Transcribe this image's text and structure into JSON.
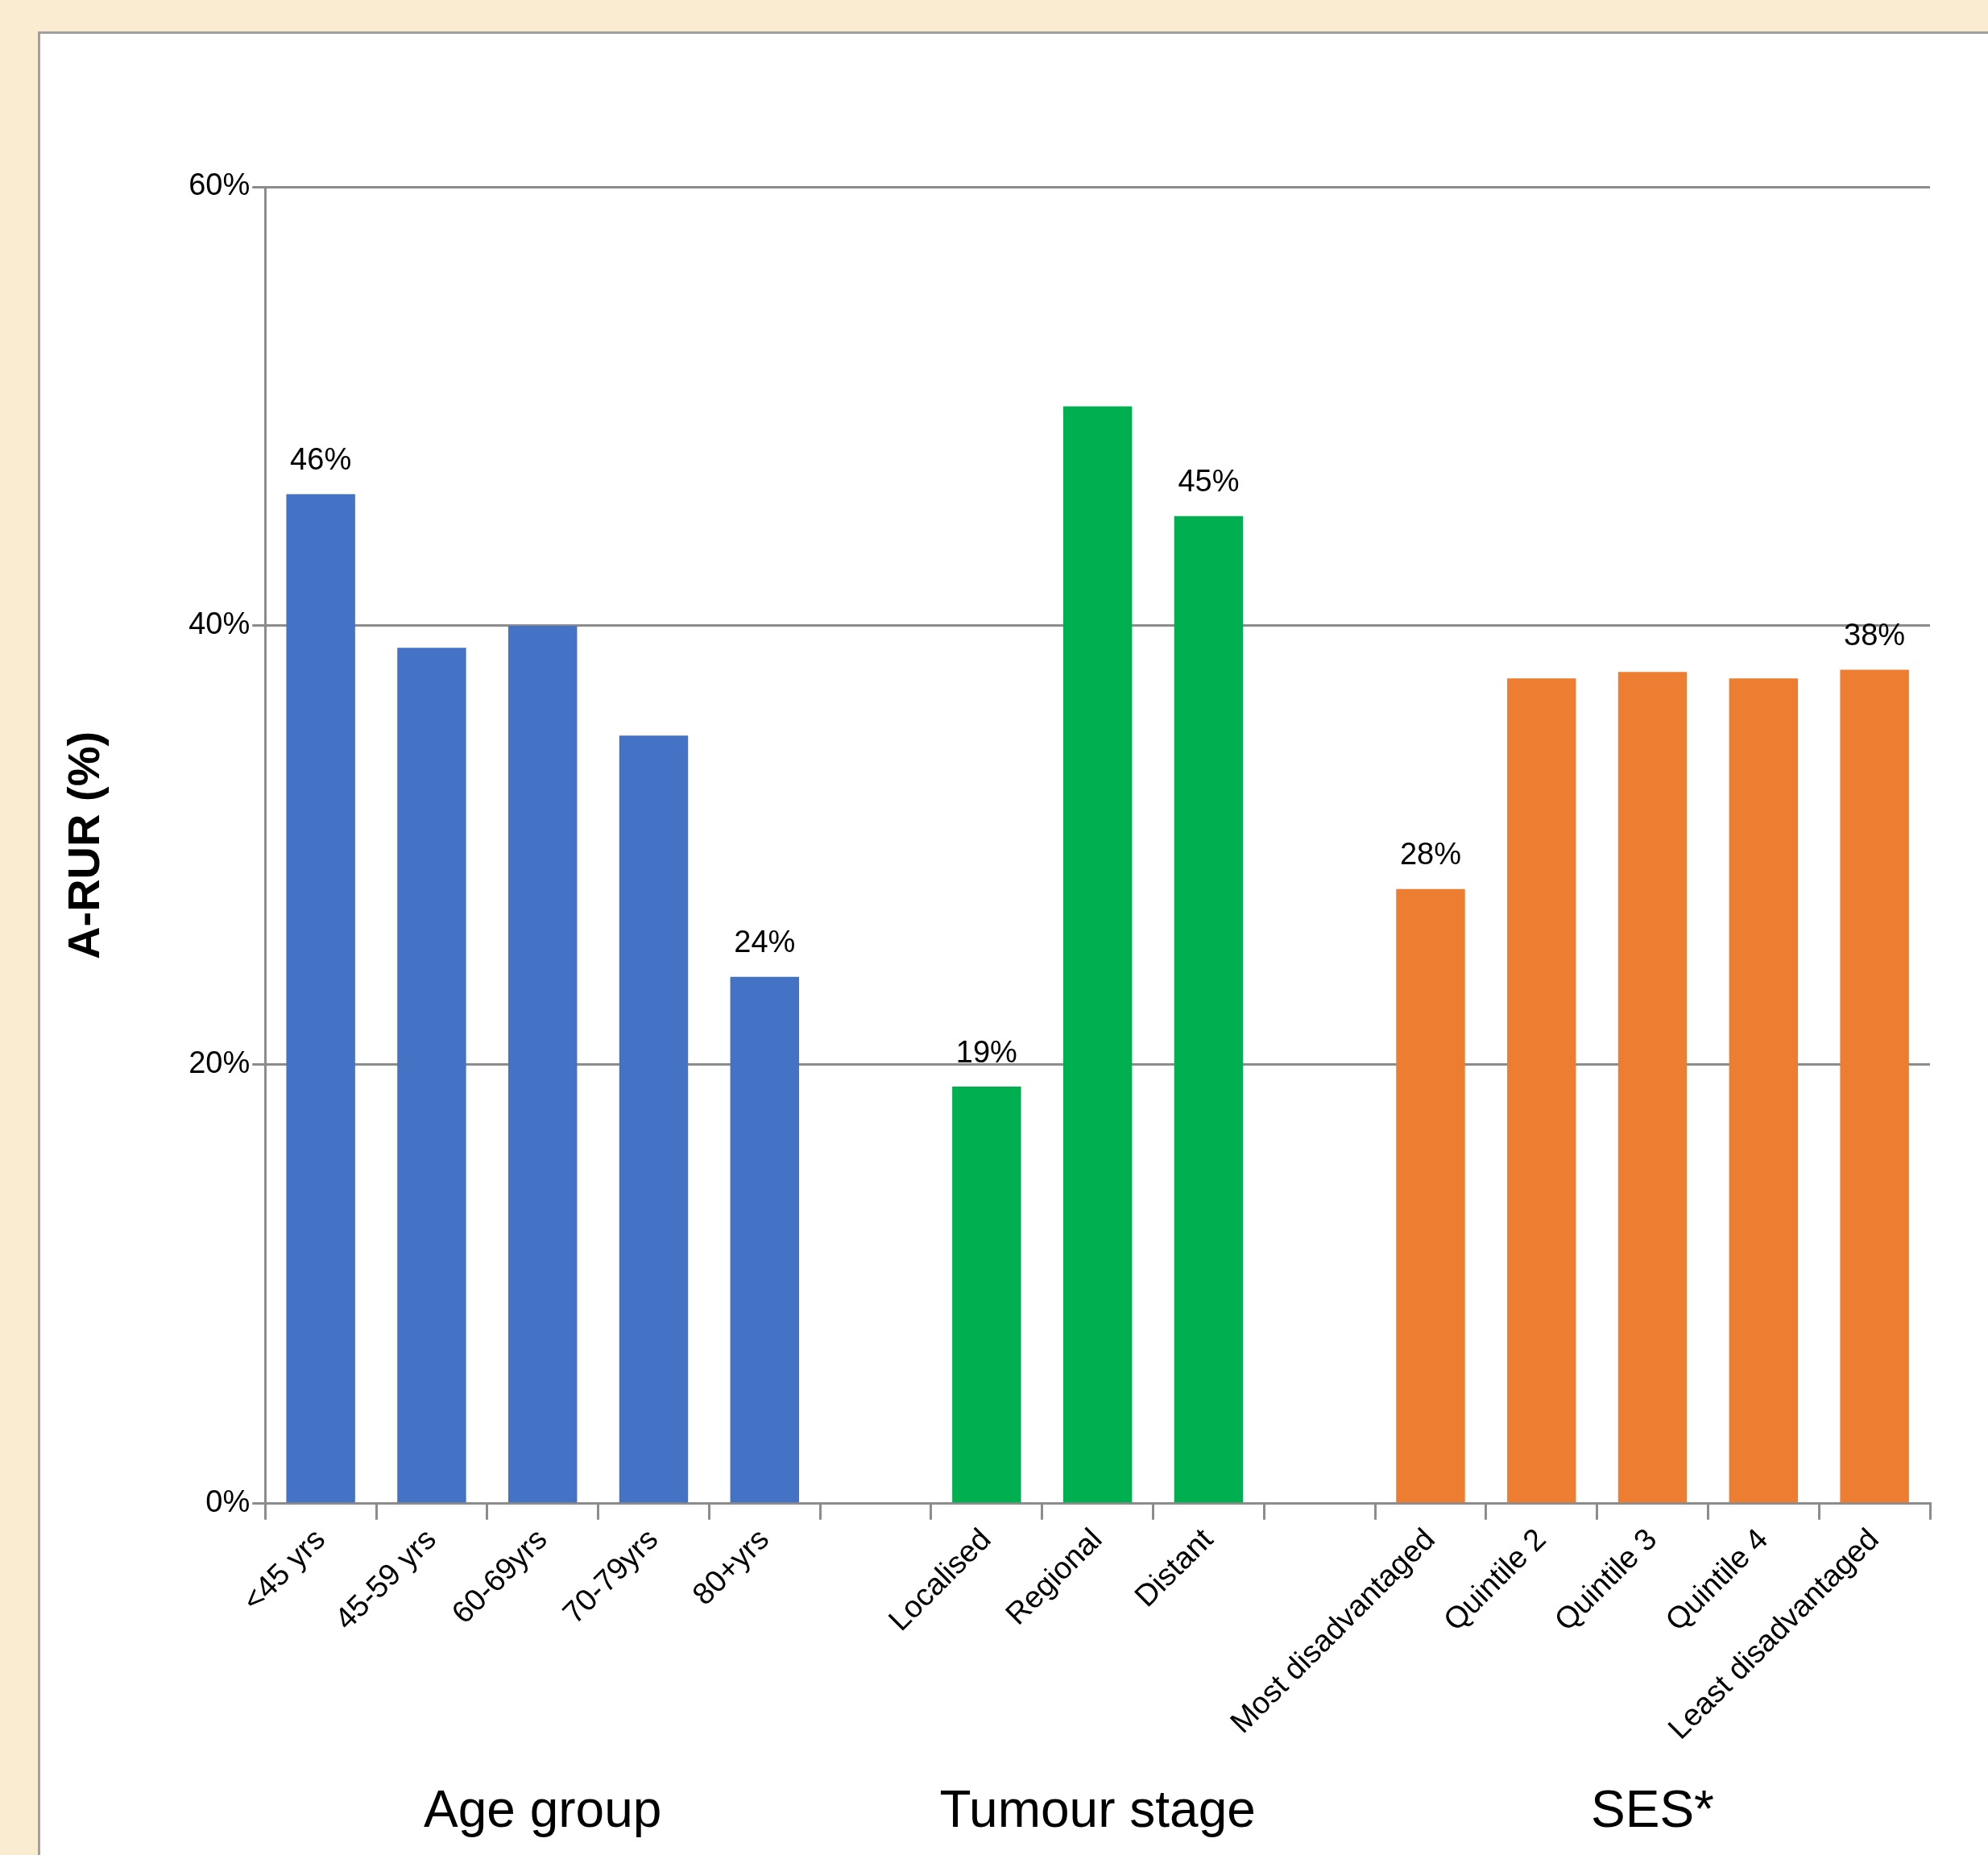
{
  "chart_data": {
    "type": "bar",
    "ylabel": "A-RUR (%)",
    "categories": [
      "<45 yrs",
      "45-59 yrs",
      "60-69yrs",
      "70-79yrs",
      "80+yrs",
      null,
      "Localised",
      "Regional",
      "Distant",
      null,
      "Most disadvantaged",
      "Quintile 2",
      "Quintile 3",
      "Quintile 4",
      "Least disadvantaged"
    ],
    "values": [
      46,
      39,
      40,
      35,
      24,
      null,
      19,
      50,
      45,
      null,
      28,
      37.6,
      37.9,
      37.6,
      38
    ],
    "value_labels": [
      "46%",
      null,
      null,
      null,
      "24%",
      null,
      "19%",
      null,
      "45%",
      null,
      "28%",
      null,
      null,
      null,
      "38%"
    ],
    "colors": [
      "#4472c4",
      "#4472c4",
      "#4472c4",
      "#4472c4",
      "#4472c4",
      "#ffffff",
      "#00b050",
      "#00b050",
      "#00b050",
      "#ffffff",
      "#ed7d31",
      "#ed7d31",
      "#ed7d31",
      "#ed7d31",
      "#ed7d31"
    ],
    "ylim": [
      0,
      60
    ],
    "yticks": [
      {
        "value": 0,
        "label": "0%"
      },
      {
        "value": 20,
        "label": "20%"
      },
      {
        "value": 40,
        "label": "40%"
      },
      {
        "value": 60,
        "label": "60%"
      }
    ],
    "grid": "y",
    "annotations": [
      "Age group",
      "Tumour stage",
      "SES*"
    ]
  }
}
